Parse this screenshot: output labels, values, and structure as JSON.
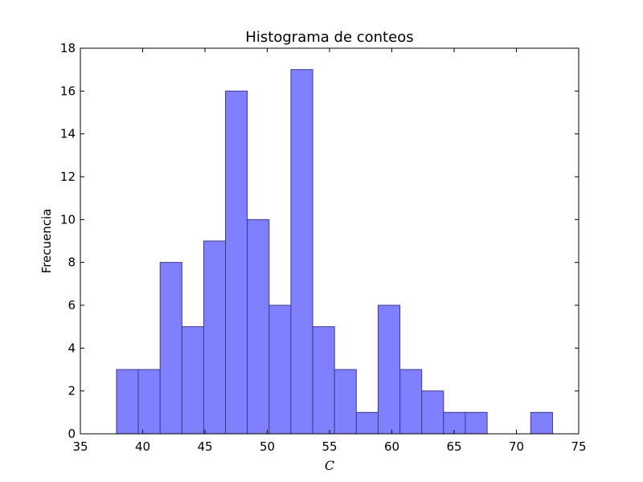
{
  "chart_data": {
    "type": "bar",
    "title": "Histograma de conteos",
    "xlabel": "C",
    "ylabel": "Frecuencia",
    "xlim": [
      35,
      75
    ],
    "ylim": [
      0,
      18
    ],
    "x_ticks": [
      35,
      40,
      45,
      50,
      55,
      60,
      65,
      70,
      75
    ],
    "y_ticks": [
      0,
      2,
      4,
      6,
      8,
      10,
      12,
      14,
      16,
      18
    ],
    "grid": false,
    "bar_color": "#8080ff",
    "edge_color": "#3a3a8c",
    "bins": [
      {
        "start": 37.9,
        "end": 39.65,
        "count": 3
      },
      {
        "start": 39.65,
        "end": 41.4,
        "count": 3
      },
      {
        "start": 41.4,
        "end": 43.15,
        "count": 8
      },
      {
        "start": 43.15,
        "end": 44.9,
        "count": 5
      },
      {
        "start": 44.9,
        "end": 46.65,
        "count": 9
      },
      {
        "start": 46.65,
        "end": 48.4,
        "count": 16
      },
      {
        "start": 48.4,
        "end": 50.15,
        "count": 10
      },
      {
        "start": 50.15,
        "end": 51.9,
        "count": 6
      },
      {
        "start": 51.9,
        "end": 53.65,
        "count": 17
      },
      {
        "start": 53.65,
        "end": 55.4,
        "count": 5
      },
      {
        "start": 55.4,
        "end": 57.15,
        "count": 3
      },
      {
        "start": 57.15,
        "end": 58.9,
        "count": 1
      },
      {
        "start": 58.9,
        "end": 60.65,
        "count": 6
      },
      {
        "start": 60.65,
        "end": 62.4,
        "count": 3
      },
      {
        "start": 62.4,
        "end": 64.15,
        "count": 2
      },
      {
        "start": 64.15,
        "end": 65.9,
        "count": 1
      },
      {
        "start": 65.9,
        "end": 67.65,
        "count": 1
      },
      {
        "start": 67.65,
        "end": 69.4,
        "count": 0
      },
      {
        "start": 69.4,
        "end": 71.15,
        "count": 0
      },
      {
        "start": 71.15,
        "end": 72.9,
        "count": 1
      }
    ]
  }
}
